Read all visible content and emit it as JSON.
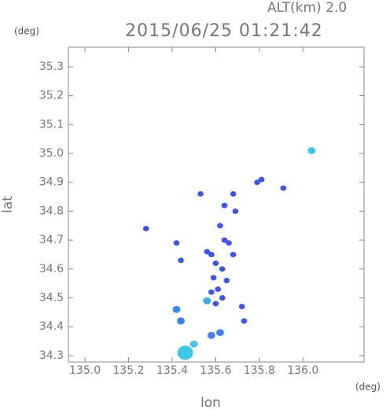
{
  "chart_data": {
    "type": "scatter",
    "title": "2015/06/25 01:21:42",
    "subtitle": "ALT(km) 2.0",
    "y_unit": "(deg)",
    "x_unit": "(deg)",
    "x_label": "lon",
    "y_label": "lat",
    "xlim": [
      134.924,
      136.28
    ],
    "ylim": [
      34.278,
      35.368
    ],
    "xticks": [
      {
        "value": 135,
        "label": "135.0"
      },
      135.2,
      135.4,
      135.6,
      135.8,
      {
        "value": 136,
        "label": "136.0"
      }
    ],
    "yticks": [
      34.3,
      34.4,
      34.5,
      34.6,
      34.7,
      34.8,
      34.9,
      {
        "value": 35,
        "label": "35.0"
      },
      35.1,
      35.2,
      35.3
    ],
    "x": [
      135.46,
      135.42,
      135.44,
      135.56,
      135.62,
      135.58,
      135.5,
      135.44,
      135.42,
      135.56,
      135.58,
      135.6,
      135.64,
      135.66,
      135.63,
      135.59,
      135.61,
      135.65,
      135.58,
      135.6,
      135.63,
      135.68,
      135.72,
      135.73,
      135.62,
      135.64,
      135.69,
      135.79,
      135.81,
      135.91,
      135.28,
      135.53,
      135.68,
      136.04
    ],
    "values": [
      34.31,
      34.46,
      34.42,
      34.49,
      34.38,
      34.37,
      34.34,
      34.63,
      34.69,
      34.66,
      34.65,
      34.62,
      34.7,
      34.69,
      34.6,
      34.57,
      34.53,
      34.56,
      34.52,
      34.48,
      34.5,
      34.65,
      34.47,
      34.42,
      34.75,
      34.82,
      34.8,
      34.9,
      34.91,
      34.88,
      34.74,
      34.86,
      34.86,
      35.01
    ],
    "colors": [
      "#3ec8e8",
      "#3a8ee8",
      "#3a7ee8",
      "#38b0e0",
      "#4a7ef0",
      "#4a7ef0",
      "#48c0e8",
      "#3f55e8",
      "#3f55e8",
      "#3f55e8",
      "#3f55e8",
      "#3f55e8",
      "#3f55e8",
      "#3f55e8",
      "#3f55e8",
      "#3f55e8",
      "#3f55e8",
      "#3f55e8",
      "#3f55e8",
      "#3f55e8",
      "#3f55e8",
      "#3f55e8",
      "#3f55e8",
      "#3f55e8",
      "#3f55e8",
      "#3f55e8",
      "#3f55e8",
      "#3f55e8",
      "#3f55e8",
      "#3f55e8",
      "#3f55e8",
      "#3f55e8",
      "#3f55e8",
      "#3ec8e8"
    ]
  }
}
